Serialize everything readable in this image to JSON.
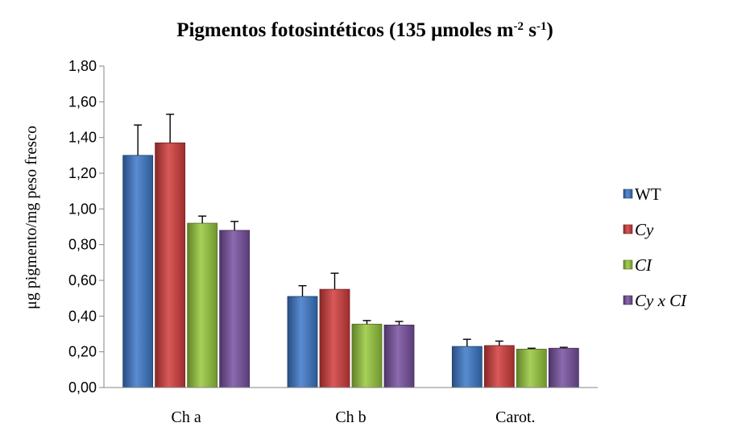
{
  "chart_data": {
    "type": "bar",
    "title": {
      "parts": [
        {
          "text": "Pigmentos fotosintéticos (135 μmoles m"
        },
        {
          "text": "-2",
          "sup": true
        },
        {
          "text": " s"
        },
        {
          "text": "-1",
          "sup": true
        },
        {
          "text": ")"
        }
      ]
    },
    "ylabel": "μg pigmento/mg  peso fresco",
    "xlabel": "",
    "ylim": [
      0,
      1.8
    ],
    "yticks": [
      "0,00",
      "0,20",
      "0,40",
      "0,60",
      "0,80",
      "1,00",
      "1,20",
      "1,40",
      "1,60",
      "1,80"
    ],
    "ytick_values": [
      0,
      0.2,
      0.4,
      0.6,
      0.8,
      1.0,
      1.2,
      1.4,
      1.6,
      1.8
    ],
    "categories": [
      "Ch a",
      "Ch b",
      "Carot."
    ],
    "grid": false,
    "legend_position": "right",
    "series": [
      {
        "name": "WT",
        "italic": false,
        "color": "#3c78c8",
        "values": [
          1.3,
          0.51,
          0.23
        ],
        "errors": [
          0.17,
          0.06,
          0.04
        ]
      },
      {
        "name": "Cy",
        "italic": true,
        "color": "#d23c3c",
        "values": [
          1.37,
          0.55,
          0.235
        ],
        "errors": [
          0.16,
          0.09,
          0.025
        ]
      },
      {
        "name": "CI",
        "italic": true,
        "color": "#96c83c",
        "values": [
          0.92,
          0.355,
          0.215
        ],
        "errors": [
          0.04,
          0.02,
          0.005
        ]
      },
      {
        "name": "Cy x CI",
        "italic": true,
        "color": "#7850a0",
        "values": [
          0.88,
          0.35,
          0.22
        ],
        "errors": [
          0.05,
          0.02,
          0.005
        ]
      }
    ]
  }
}
